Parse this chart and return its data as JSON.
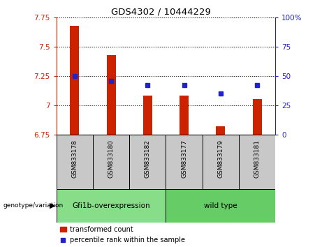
{
  "title": "GDS4302 / 10444229",
  "categories": [
    "GSM833178",
    "GSM833180",
    "GSM833182",
    "GSM833177",
    "GSM833179",
    "GSM833181"
  ],
  "bar_values": [
    7.68,
    7.43,
    7.08,
    7.08,
    6.82,
    7.05
  ],
  "percentile_values": [
    50,
    46,
    42,
    42,
    35,
    42
  ],
  "bar_bottom": 6.75,
  "ylim_left": [
    6.75,
    7.75
  ],
  "ylim_right": [
    0,
    100
  ],
  "yticks_left": [
    6.75,
    7.0,
    7.25,
    7.5,
    7.75
  ],
  "yticks_right": [
    0,
    25,
    50,
    75,
    100
  ],
  "ytick_labels_left": [
    "6.75",
    "7",
    "7.25",
    "7.5",
    "7.75"
  ],
  "ytick_labels_right": [
    "0",
    "25",
    "50",
    "75",
    "100%"
  ],
  "bar_color": "#cc2200",
  "dot_color": "#2222cc",
  "group1_label": "Gfi1b-overexpression",
  "group2_label": "wild type",
  "group1_color": "#88dd88",
  "group2_color": "#66cc66",
  "group1_indices": [
    0,
    1,
    2
  ],
  "group2_indices": [
    3,
    4,
    5
  ],
  "legend_label_bar": "transformed count",
  "legend_label_dot": "percentile rank within the sample",
  "bar_width": 0.25,
  "left_axis_color": "#cc2200",
  "right_axis_color": "#2222cc",
  "xticklabel_bg": "#c8c8c8"
}
